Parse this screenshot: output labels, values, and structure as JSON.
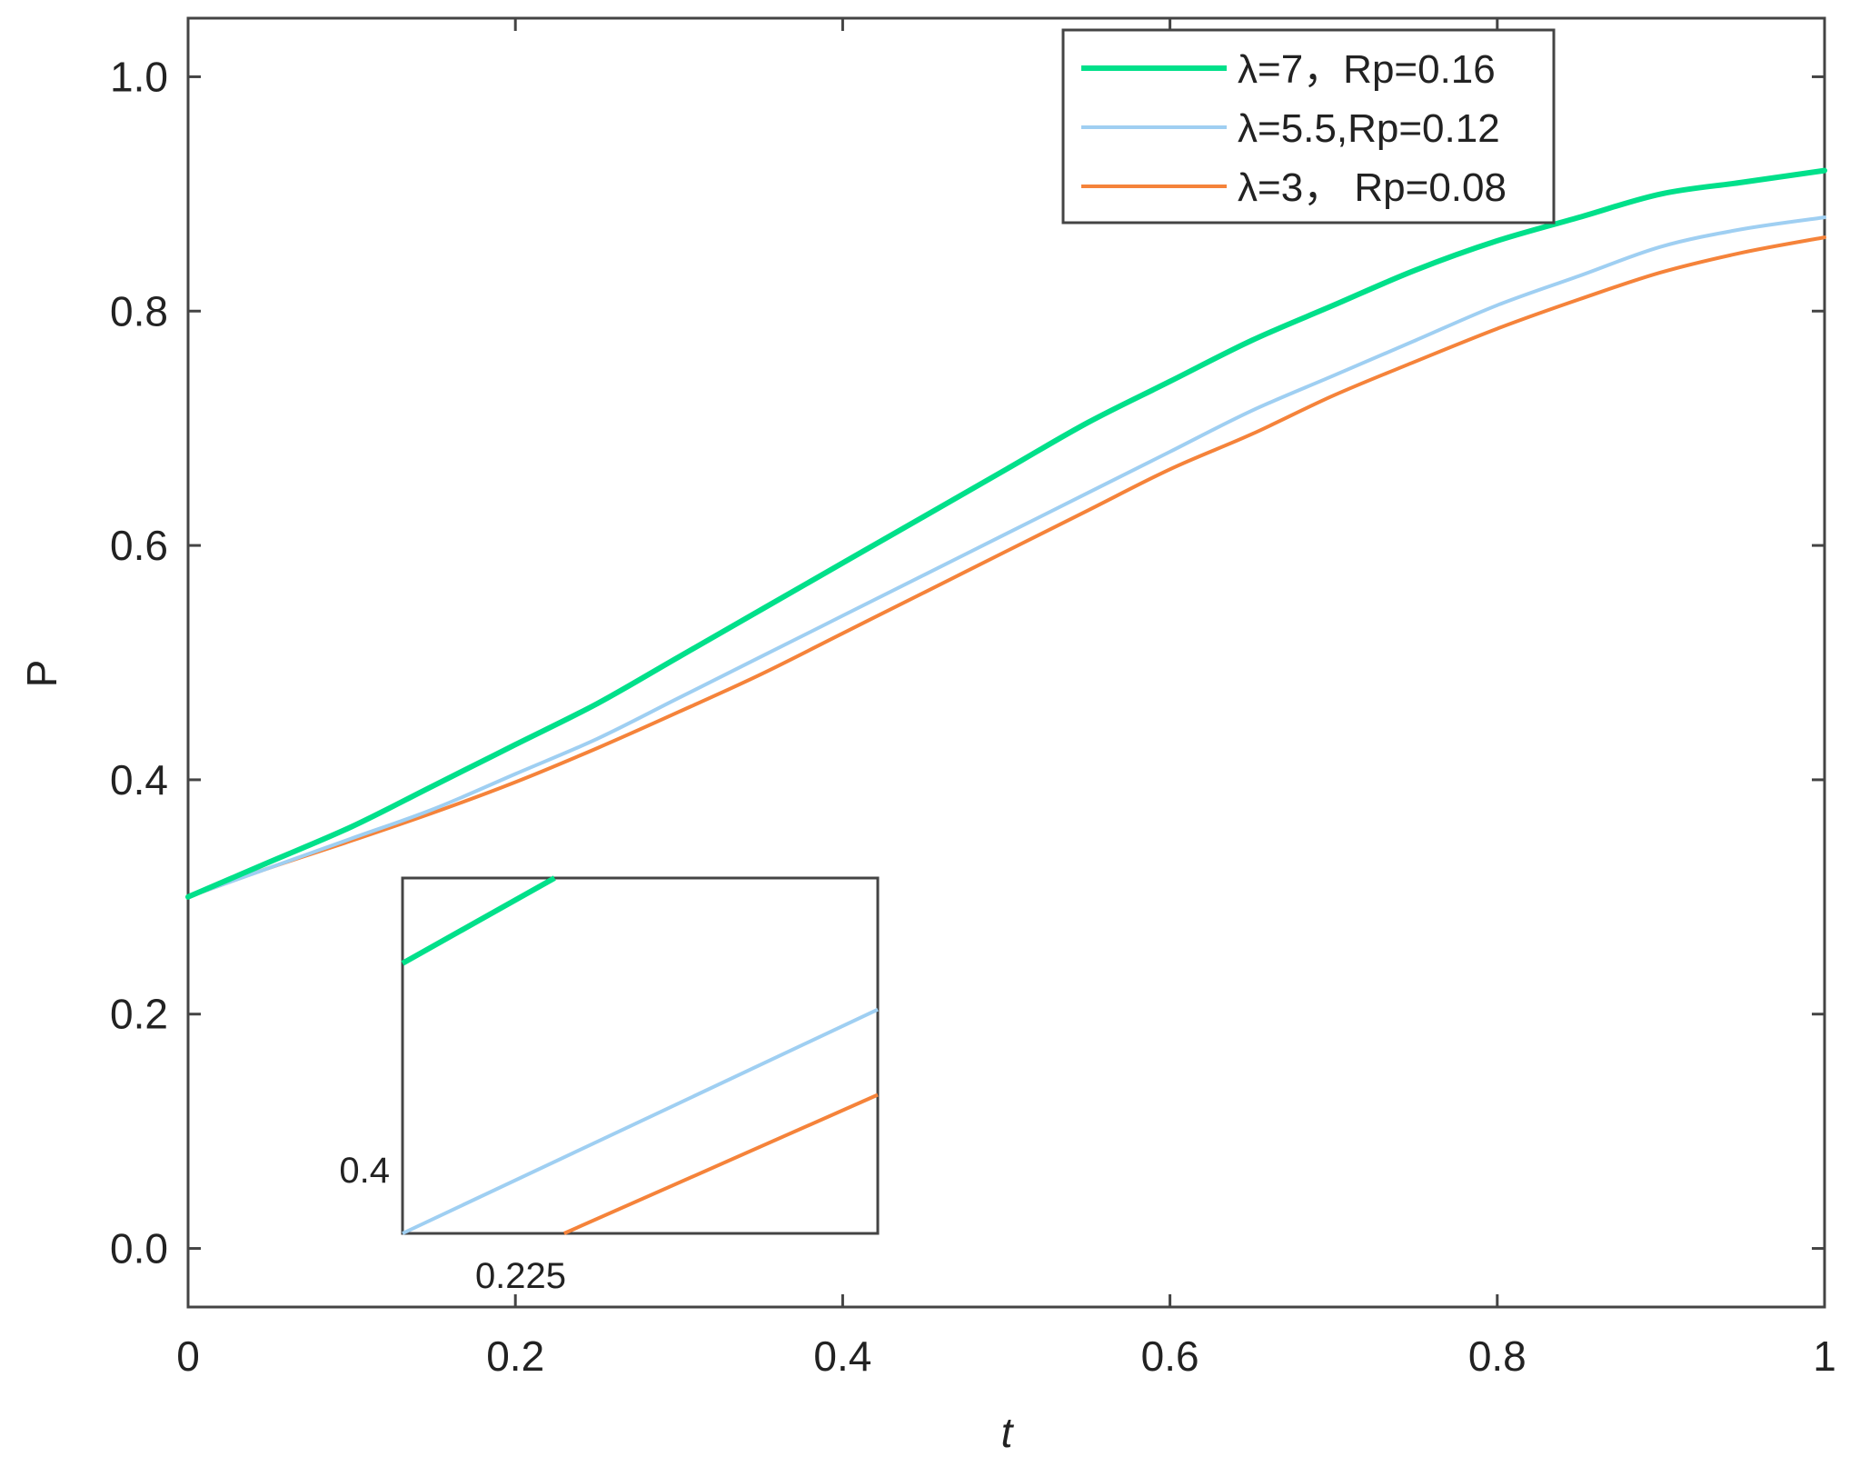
{
  "chart_data": {
    "type": "line",
    "xlabel": "t",
    "ylabel": "P",
    "xlim": [
      0,
      1
    ],
    "ylim": [
      -0.05,
      1.05
    ],
    "xticks": [
      0,
      0.2,
      0.4,
      0.6,
      0.8,
      1
    ],
    "xtick_labels": [
      "0",
      "0.2",
      "0.4",
      "0.6",
      "0.8",
      "1"
    ],
    "yticks": [
      0,
      0.2,
      0.4,
      0.6,
      0.8,
      1.0
    ],
    "ytick_labels": [
      "0.0",
      "0.2",
      "0.4",
      "0.6",
      "0.8",
      "1.0"
    ],
    "legend_position": "top-right",
    "x": [
      0,
      0.05,
      0.1,
      0.15,
      0.2,
      0.25,
      0.3,
      0.35,
      0.4,
      0.45,
      0.5,
      0.55,
      0.6,
      0.65,
      0.7,
      0.75,
      0.8,
      0.85,
      0.9,
      0.95,
      1.0
    ],
    "series": [
      {
        "name": "λ=7，Rp=0.16",
        "color": "#00e08a",
        "width": 6,
        "values": [
          0.3,
          0.33,
          0.36,
          0.395,
          0.43,
          0.465,
          0.505,
          0.545,
          0.585,
          0.625,
          0.665,
          0.705,
          0.74,
          0.775,
          0.805,
          0.835,
          0.86,
          0.88,
          0.9,
          0.91,
          0.92
        ]
      },
      {
        "name": "λ=5.5,Rp=0.12",
        "color": "#9fcff2",
        "width": 4,
        "values": [
          0.3,
          0.325,
          0.35,
          0.375,
          0.405,
          0.435,
          0.47,
          0.505,
          0.54,
          0.575,
          0.61,
          0.645,
          0.68,
          0.715,
          0.745,
          0.775,
          0.805,
          0.83,
          0.855,
          0.87,
          0.88
        ]
      },
      {
        "name": "λ=3，  Rp=0.08",
        "color": "#f5833a",
        "width": 4,
        "values": [
          0.3,
          0.325,
          0.348,
          0.372,
          0.398,
          0.427,
          0.458,
          0.49,
          0.525,
          0.56,
          0.595,
          0.63,
          0.665,
          0.695,
          0.728,
          0.757,
          0.785,
          0.81,
          0.833,
          0.85,
          0.863
        ]
      }
    ],
    "inset": {
      "xlim": [
        0.225,
        0.23
      ],
      "ylim": [
        0.4,
        0.41
      ],
      "xtick_label": "0.225",
      "ytick_label": "0.4",
      "series": [
        {
          "name": "λ=7，Rp=0.16",
          "x": [
            0.225,
            0.2266
          ],
          "values": [
            0.4076,
            0.41
          ]
        },
        {
          "name": "λ=5.5,Rp=0.12",
          "x": [
            0.225,
            0.23
          ],
          "values": [
            0.4,
            0.4063
          ]
        },
        {
          "name": "λ=3，  Rp=0.08",
          "x": [
            0.2267,
            0.23
          ],
          "values": [
            0.4,
            0.4039
          ]
        }
      ]
    }
  }
}
